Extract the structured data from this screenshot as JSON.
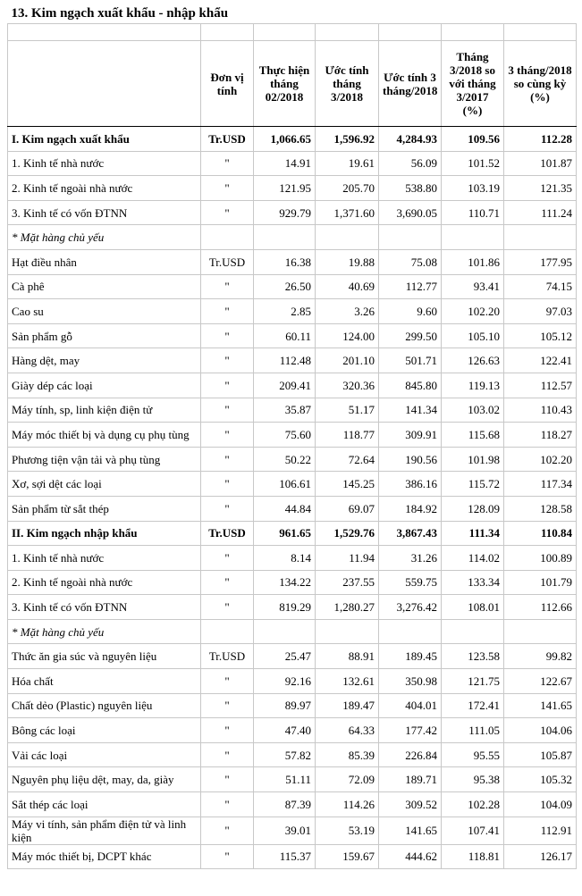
{
  "table": {
    "title": "13. Kim ngạch xuất khẩu - nhập khẩu",
    "header": [
      "Đơn vị tính",
      "Thực hiện tháng 02/2018",
      "Ước tính tháng 3/2018",
      "Ước tính 3 tháng/2018",
      "Tháng 3/2018 so với tháng 3/2017 (%)",
      "3 tháng/2018 so cùng kỳ (%)"
    ],
    "sections": [
      {
        "total": [
          "I. Kim ngạch xuất khẩu",
          "Tr.USD",
          "1,066.65",
          "1,596.92",
          "4,284.93",
          "109.56",
          "112.28"
        ],
        "breakdown": [
          [
            "1. Kinh tế nhà nước",
            "\"",
            "14.91",
            "19.61",
            "56.09",
            "101.52",
            "101.87"
          ],
          [
            "2. Kinh tế ngoài nhà nước",
            "\"",
            "121.95",
            "205.70",
            "538.80",
            "103.19",
            "121.35"
          ],
          [
            "3. Kinh tế có vốn ĐTNN",
            "\"",
            "929.79",
            "1,371.60",
            "3,690.05",
            "110.71",
            "111.24"
          ]
        ],
        "note": "* Mặt hàng chủ yếu",
        "items": [
          [
            "Hạt điều nhân",
            "Tr.USD",
            "16.38",
            "19.88",
            "75.08",
            "101.86",
            "177.95"
          ],
          [
            "Cà phê",
            "\"",
            "26.50",
            "40.69",
            "112.77",
            "93.41",
            "74.15"
          ],
          [
            "Cao su",
            "\"",
            "2.85",
            "3.26",
            "9.60",
            "102.20",
            "97.03"
          ],
          [
            "Sản phẩm gỗ",
            "\"",
            "60.11",
            "124.00",
            "299.50",
            "105.10",
            "105.12"
          ],
          [
            "Hàng dệt, may",
            "\"",
            "112.48",
            "201.10",
            "501.71",
            "126.63",
            "122.41"
          ],
          [
            "Giày dép các loại",
            "\"",
            "209.41",
            "320.36",
            "845.80",
            "119.13",
            "112.57"
          ],
          [
            "Máy tính, sp, linh kiện điện tử",
            "\"",
            "35.87",
            "51.17",
            "141.34",
            "103.02",
            "110.43"
          ],
          [
            "Máy móc thiết bị và dụng cụ phụ tùng",
            "\"",
            "75.60",
            "118.77",
            "309.91",
            "115.68",
            "118.27"
          ],
          [
            "Phương tiện vận tải và phụ tùng",
            "\"",
            "50.22",
            "72.64",
            "190.56",
            "101.98",
            "102.20"
          ],
          [
            "Xơ, sợi dệt các loại",
            "\"",
            "106.61",
            "145.25",
            "386.16",
            "115.72",
            "117.34"
          ],
          [
            "Sản phẩm từ sắt thép",
            "\"",
            "44.84",
            "69.07",
            "184.92",
            "128.09",
            "128.58"
          ]
        ]
      },
      {
        "total": [
          "II. Kim ngạch nhập khẩu",
          "Tr.USD",
          "961.65",
          "1,529.76",
          "3,867.43",
          "111.34",
          "110.84"
        ],
        "breakdown": [
          [
            "1. Kinh tế nhà nước",
            "\"",
            "8.14",
            "11.94",
            "31.26",
            "114.02",
            "100.89"
          ],
          [
            "2. Kinh tế ngoài nhà nước",
            "\"",
            "134.22",
            "237.55",
            "559.75",
            "133.34",
            "101.79"
          ],
          [
            "3. Kinh tế có vốn ĐTNN",
            "\"",
            "819.29",
            "1,280.27",
            "3,276.42",
            "108.01",
            "112.66"
          ]
        ],
        "note": "* Mặt hàng chủ yếu",
        "items": [
          [
            "Thức ăn gia súc và nguyên liệu",
            "Tr.USD",
            "25.47",
            "88.91",
            "189.45",
            "123.58",
            "99.82"
          ],
          [
            "Hóa chất",
            "\"",
            "92.16",
            "132.61",
            "350.98",
            "121.75",
            "122.67"
          ],
          [
            "Chất dẻo (Plastic) nguyên liệu",
            "\"",
            "89.97",
            "189.47",
            "404.01",
            "172.41",
            "141.65"
          ],
          [
            "Bông các loại",
            "\"",
            "47.40",
            "64.33",
            "177.42",
            "111.05",
            "104.06"
          ],
          [
            "Vải các loại",
            "\"",
            "57.82",
            "85.39",
            "226.84",
            "95.55",
            "105.87"
          ],
          [
            "Nguyên phụ liệu dệt, may, da, giày",
            "\"",
            "51.11",
            "72.09",
            "189.71",
            "95.38",
            "105.32"
          ],
          [
            "Sắt thép các loại",
            "\"",
            "87.39",
            "114.26",
            "309.52",
            "102.28",
            "104.09"
          ],
          [
            "Máy vi tính, sản phẩm điện tử và linh kiện",
            "\"",
            "39.01",
            "53.19",
            "141.65",
            "107.41",
            "112.91"
          ],
          [
            "Máy móc thiết bị, DCPT khác",
            "\"",
            "115.37",
            "159.67",
            "444.62",
            "118.81",
            "126.17"
          ]
        ]
      }
    ]
  }
}
